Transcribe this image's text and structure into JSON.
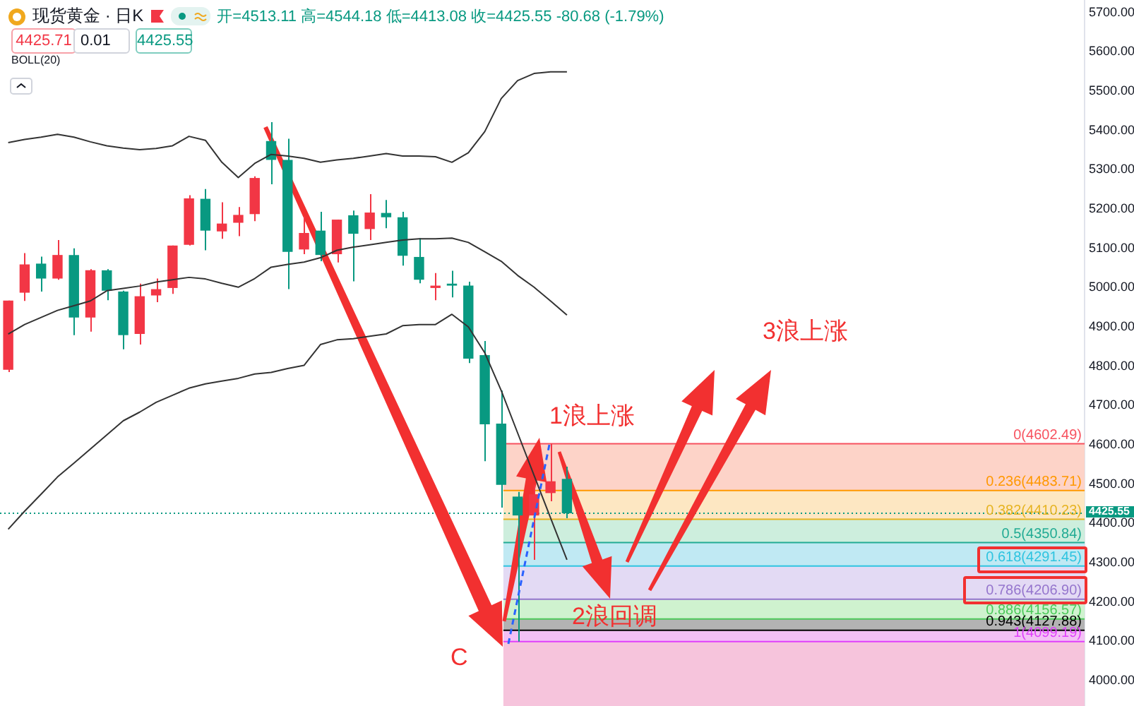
{
  "chart_data": {
    "type": "candlestick",
    "title": "现货黄金 · 日K",
    "subtitle": "开=4513.11 高=4544.18 低=4413.08 收=4425.55 -80.68 (-1.79%)",
    "categories": [
      null,
      null,
      null,
      null,
      null,
      null,
      null,
      null,
      null,
      null,
      null,
      null,
      null,
      null,
      null,
      null,
      null,
      null,
      null,
      null,
      null,
      null,
      null,
      null,
      null,
      null,
      null,
      null,
      null,
      null,
      null,
      null,
      null,
      null,
      null,
      null,
      null,
      null,
      null,
      null,
      null,
      null,
      null,
      null,
      null,
      null,
      null,
      null,
      null,
      null,
      null,
      null,
      null,
      null,
      null,
      null,
      null,
      null,
      null,
      null,
      null,
      null,
      null,
      null,
      null,
      null
    ],
    "ohlc": [
      [
        4791,
        4967,
        4785,
        4967
      ],
      [
        4987,
        5088,
        4966,
        5059
      ],
      [
        5061,
        5079,
        4990,
        5023
      ],
      [
        5023,
        5121,
        5020,
        5083
      ],
      [
        5083,
        5100,
        4879,
        4924
      ],
      [
        4924,
        5047,
        4888,
        5044
      ],
      [
        5044,
        5047,
        4968,
        4992
      ],
      [
        4990,
        4992,
        4843,
        4879
      ],
      [
        4882,
        5010,
        4855,
        4978
      ],
      [
        4980,
        5023,
        4963,
        4996
      ],
      [
        4999,
        5107,
        4984,
        5107
      ],
      [
        5109,
        5235,
        5107,
        5227
      ],
      [
        5226,
        5251,
        5095,
        5145
      ],
      [
        5143,
        5217,
        5124,
        5163
      ],
      [
        5165,
        5205,
        5131,
        5185
      ],
      [
        5187,
        5283,
        5169,
        5279
      ],
      [
        5373,
        5421,
        5263,
        5325
      ],
      [
        5325,
        5379,
        4996,
        5091
      ],
      [
        5097,
        5181,
        5085,
        5139
      ],
      [
        5145,
        5193,
        5067,
        5083
      ],
      [
        5085,
        5173,
        5064,
        5173
      ],
      [
        5184,
        5196,
        5016,
        5137
      ],
      [
        5149,
        5238,
        5121,
        5191
      ],
      [
        5190,
        5223,
        5151,
        5179
      ],
      [
        5179,
        5193,
        5056,
        5081
      ],
      [
        5078,
        5126,
        5011,
        5020
      ],
      [
        4999,
        5037,
        4968,
        5005
      ],
      [
        5010,
        5043,
        4975,
        5005
      ],
      [
        5005,
        5015,
        4808,
        4819
      ],
      [
        4828,
        4864,
        4558,
        4652
      ],
      [
        4654,
        4738,
        4440,
        4498
      ],
      [
        4468,
        4480,
        4099.19,
        4420
      ],
      [
        4420,
        4498,
        4307,
        4474
      ],
      [
        4477,
        4602.49,
        4456,
        4507
      ],
      [
        4513.11,
        4544.18,
        4413.08,
        4425.55
      ],
      null,
      null,
      null,
      null,
      null,
      null,
      null,
      null,
      null,
      null,
      null,
      null,
      null,
      null,
      null,
      null,
      null,
      null,
      null,
      null,
      null,
      null,
      null,
      null,
      null,
      null,
      null,
      null,
      null,
      null,
      null
    ],
    "colors": [
      "#f23645",
      "#f23645",
      "#089981",
      "#f23645",
      "#089981",
      "#f23645",
      "#089981",
      "#089981",
      "#f23645",
      "#f23645",
      "#f23645",
      "#f23645",
      "#089981",
      "#f23645",
      "#f23645",
      "#f23645",
      "#089981",
      "#089981",
      "#f23645",
      "#089981",
      "#f23645",
      "#089981",
      "#f23645",
      "#089981",
      "#089981",
      "#089981",
      "#f23645",
      "#089981",
      "#089981",
      "#089981",
      "#089981",
      "#089981",
      "#f23645",
      "#f23645",
      "#089981",
      null,
      null,
      null,
      null,
      null,
      null,
      null,
      null,
      null,
      null,
      null,
      null,
      null,
      null,
      null,
      null,
      null,
      null,
      null,
      null,
      null,
      null,
      null,
      null,
      null,
      null,
      null,
      null,
      null,
      null,
      null
    ],
    "series": [
      {
        "type": "line",
        "color": "#333333",
        "values": [
          5369,
          5377,
          5383,
          5390,
          5383,
          5371,
          5361,
          5355,
          5351,
          5354,
          5361,
          5385,
          5375,
          5319,
          5280,
          5316,
          5339,
          5335,
          5329,
          5319,
          5325,
          5329,
          5335,
          5341,
          5335,
          5335,
          5333,
          5319,
          5343,
          5397,
          5481,
          5527,
          5545,
          5549,
          5549,
          null,
          null,
          null,
          null,
          null,
          null,
          null,
          null,
          null,
          null,
          null,
          null,
          null,
          null,
          null,
          null,
          null,
          null,
          null,
          null,
          null,
          null,
          null,
          null,
          null,
          null,
          null,
          null,
          null,
          null,
          null
        ]
      },
      {
        "type": "line",
        "color": "#333333",
        "values": [
          4882,
          4906,
          4924,
          4942,
          4954,
          4966,
          4992,
          4998,
          5004,
          5014,
          5020,
          5026,
          5022,
          5011,
          5001,
          5023,
          5052,
          5059,
          5065,
          5076,
          5095,
          5103,
          5109,
          5115,
          5121,
          5124,
          5124,
          5126,
          5115,
          5091,
          5067,
          5031,
          5001,
          4966,
          4930,
          null,
          null,
          null,
          null,
          null,
          null,
          null,
          null,
          null,
          null,
          null,
          null,
          null,
          null,
          null,
          null,
          null,
          null,
          null,
          null,
          null,
          null,
          null,
          null,
          null,
          null,
          null,
          null,
          null,
          null,
          null
        ]
      },
      {
        "type": "line",
        "color": "#333333",
        "values": [
          4385,
          4431,
          4474,
          4518,
          4553,
          4589,
          4625,
          4661,
          4683,
          4708,
          4726,
          4744,
          4755,
          4762,
          4769,
          4780,
          4784,
          4794,
          4802,
          4855,
          4867,
          4870,
          4876,
          4882,
          4903,
          4906,
          4906,
          4932,
          4900,
          4834,
          4738,
          4630,
          4522,
          4414,
          4307,
          null,
          null,
          null,
          null,
          null,
          null,
          null,
          null,
          null,
          null,
          null,
          null,
          null,
          null,
          null,
          null,
          null,
          null,
          null,
          null,
          null,
          null,
          null,
          null,
          null,
          null,
          null,
          null,
          null,
          null,
          null
        ]
      }
    ],
    "ylim": [
      3935,
      5732
    ],
    "yticks": [
      {
        "value": 4000,
        "label": "4000.00"
      },
      {
        "value": 4100,
        "label": "4100.00"
      },
      {
        "value": 4200,
        "label": "4200.00"
      },
      {
        "value": 4300,
        "label": "4300.00"
      },
      {
        "value": 4400,
        "label": "4400.00"
      },
      {
        "value": 4500,
        "label": "4500.00"
      },
      {
        "value": 4600,
        "label": "4600.00"
      },
      {
        "value": 4700,
        "label": "4700.00"
      },
      {
        "value": 4800,
        "label": "4800.00"
      },
      {
        "value": 4900,
        "label": "4900.00"
      },
      {
        "value": 5000,
        "label": "5000.00"
      },
      {
        "value": 5100,
        "label": "5100.00"
      },
      {
        "value": 5200,
        "label": "5200.00"
      },
      {
        "value": 5300,
        "label": "5300.00"
      },
      {
        "value": 5400,
        "label": "5400.00"
      },
      {
        "value": 5500,
        "label": "5500.00"
      },
      {
        "value": 5600,
        "label": "5600.00"
      },
      {
        "value": 5700,
        "label": "5700.00"
      }
    ],
    "bands": [
      {
        "axis": "y",
        "from": 4483.71,
        "to": 4602.49,
        "color": "#fdd3c8"
      },
      {
        "axis": "y",
        "from": 4410.23,
        "to": 4483.71,
        "color": "#fde7c2"
      },
      {
        "axis": "y",
        "from": 4350.84,
        "to": 4410.23,
        "color": "#cdeedd"
      },
      {
        "axis": "y",
        "from": 4291.45,
        "to": 4350.84,
        "color": "#c0e9f3"
      },
      {
        "axis": "y",
        "from": 4206.9,
        "to": 4291.45,
        "color": "#e3daf4"
      },
      {
        "axis": "y",
        "from": 4156.57,
        "to": 4206.9,
        "color": "#cff2cf"
      },
      {
        "axis": "y",
        "from": 4127.88,
        "to": 4156.57,
        "color": "#b3b3b3"
      },
      {
        "axis": "y",
        "from": 4099.19,
        "to": 4127.88,
        "color": "#f3c0f5"
      },
      {
        "axis": "y",
        "from": 3935,
        "to": 4099.19,
        "color": "#f6c4dc"
      }
    ],
    "ref_lines": [
      {
        "axis": "y",
        "value": 4602.49,
        "label": "0(4602.49)",
        "color": "#f7525f"
      },
      {
        "axis": "y",
        "value": 4483.71,
        "label": "0.236(4483.71)",
        "color": "#ff9800"
      },
      {
        "axis": "y",
        "value": 4410.23,
        "label": "0.382(4410.23)",
        "color": "#e6b422"
      },
      {
        "axis": "y",
        "value": 4350.84,
        "label": "0.5(4350.84)",
        "color": "#22ab94"
      },
      {
        "axis": "y",
        "value": 4291.45,
        "label": "0.618(4291.45)",
        "color": "#2ec4e0"
      },
      {
        "axis": "y",
        "value": 4206.9,
        "label": "0.786(4206.90)",
        "color": "#9575cd"
      },
      {
        "axis": "y",
        "value": 4156.57,
        "label": "0.886(4156.57)",
        "color": "#4cc95a"
      },
      {
        "axis": "y",
        "value": 4127.88,
        "label": "0.943(4127.88)",
        "color": "#000000"
      },
      {
        "axis": "y",
        "value": 4099.19,
        "label": "1(4099.19)",
        "color": "#e040fb"
      },
      {
        "axis": "y",
        "value": 4425.55,
        "label": "4425.55",
        "color": "#089981",
        "line_style": "dotted"
      }
    ],
    "annotations": [
      "4425.71",
      "0.01",
      "4425.55",
      "BOLL(20)",
      "1浪上涨",
      "2浪回调",
      "3浪上涨",
      "C"
    ],
    "tick_labels": "y"
  }
}
